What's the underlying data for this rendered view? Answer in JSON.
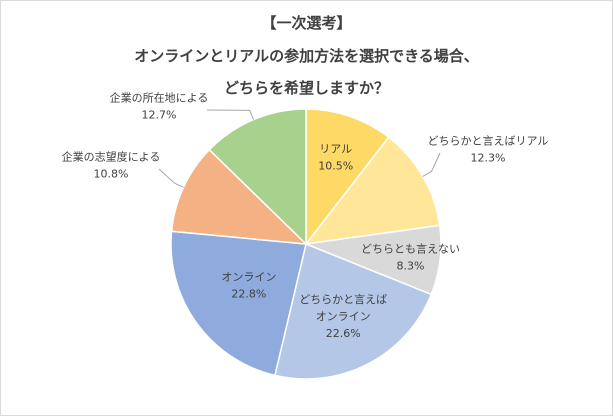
{
  "chart_data": {
    "type": "pie",
    "title_lines": [
      "【一次選考】",
      "オンラインとリアルの参加方法を選択できる場合、",
      "どちらを希望しますか？"
    ],
    "slices": [
      {
        "label": "リアル",
        "value": 10.5,
        "value_text": "10.5%",
        "color": "#ffd966"
      },
      {
        "label": "どちらかと言えばリアル",
        "value": 12.3,
        "value_text": "12.3%",
        "color": "#ffe699"
      },
      {
        "label": "どちらとも言えない",
        "value": 8.3,
        "value_text": "8.3%",
        "color": "#d9d9d9"
      },
      {
        "label": "どちらかと言えば\nオンライン",
        "value": 22.6,
        "value_text": "22.6%",
        "color": "#b4c7e7"
      },
      {
        "label": "オンライン",
        "value": 22.8,
        "value_text": "22.8%",
        "color": "#8faadc"
      },
      {
        "label": "企業の志望度による",
        "value": 10.8,
        "value_text": "10.8%",
        "color": "#f4b183"
      },
      {
        "label": "企業の所在地による",
        "value": 12.7,
        "value_text": "12.7%",
        "color": "#a9d18e"
      }
    ]
  }
}
